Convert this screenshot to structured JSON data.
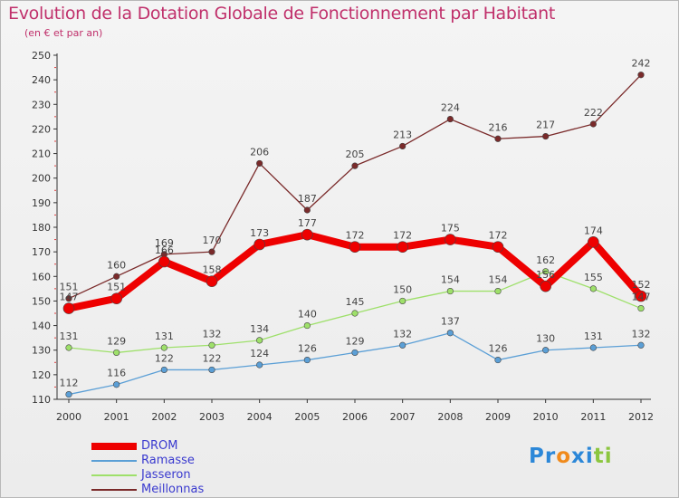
{
  "title": "Evolution de la Dotation Globale de Fonctionnement par Habitant",
  "subtitle": "(en € et par an)",
  "logo": {
    "text": "Proxiti",
    "letters": [
      "P",
      "r",
      "o",
      "x",
      "i",
      "t",
      "i"
    ],
    "letter_colors": [
      "#2b87d8",
      "#2b87d8",
      "#f08a1c",
      "#2b87d8",
      "#2b87d8",
      "#8cc63f",
      "#8cc63f"
    ]
  },
  "chart_data": {
    "type": "line",
    "x": [
      "2000",
      "2001",
      "2002",
      "2003",
      "2004",
      "2005",
      "2006",
      "2007",
      "2008",
      "2009",
      "2010",
      "2011",
      "2012"
    ],
    "ylim": [
      110,
      250
    ],
    "yticks": [
      110,
      120,
      130,
      140,
      150,
      160,
      170,
      180,
      190,
      200,
      210,
      220,
      230,
      240,
      250
    ],
    "grid": false,
    "legend_position": "bottom-left",
    "series": [
      {
        "name": "DROM",
        "color": "#ee0000",
        "values": [
          147,
          151,
          166,
          158,
          173,
          177,
          172,
          172,
          175,
          172,
          156,
          174,
          152
        ],
        "labels": [
          "147",
          "151",
          "166",
          "158",
          "173",
          "177",
          "172",
          "172",
          "175",
          "172",
          "156",
          "174",
          "152"
        ]
      },
      {
        "name": "Ramasse",
        "color": "#5b9fd6",
        "values": [
          112,
          116,
          122,
          122,
          124,
          126,
          129,
          132,
          137,
          126,
          130,
          131,
          132
        ],
        "labels": [
          "112",
          "116",
          "122",
          "122",
          "124",
          "126",
          "129",
          "132",
          "137",
          "126",
          "130",
          "131",
          "132"
        ]
      },
      {
        "name": "Jasseron",
        "color": "#9ee06a",
        "values": [
          131,
          129,
          131,
          132,
          134,
          140,
          145,
          150,
          154,
          154,
          162,
          155,
          147
        ],
        "labels": [
          "131",
          "129",
          "131",
          "132",
          "134",
          "140",
          "145",
          "150",
          "154",
          "154",
          "162",
          "155",
          "147"
        ]
      },
      {
        "name": "Meillonnas",
        "color": "#7a2a2a",
        "values": [
          151,
          160,
          169,
          170,
          206,
          187,
          205,
          213,
          224,
          216,
          217,
          222,
          242
        ],
        "labels": [
          "151",
          "160",
          "169",
          "170",
          "206",
          "187",
          "205",
          "213",
          "224",
          "216",
          "217",
          "222",
          "242"
        ]
      }
    ]
  }
}
